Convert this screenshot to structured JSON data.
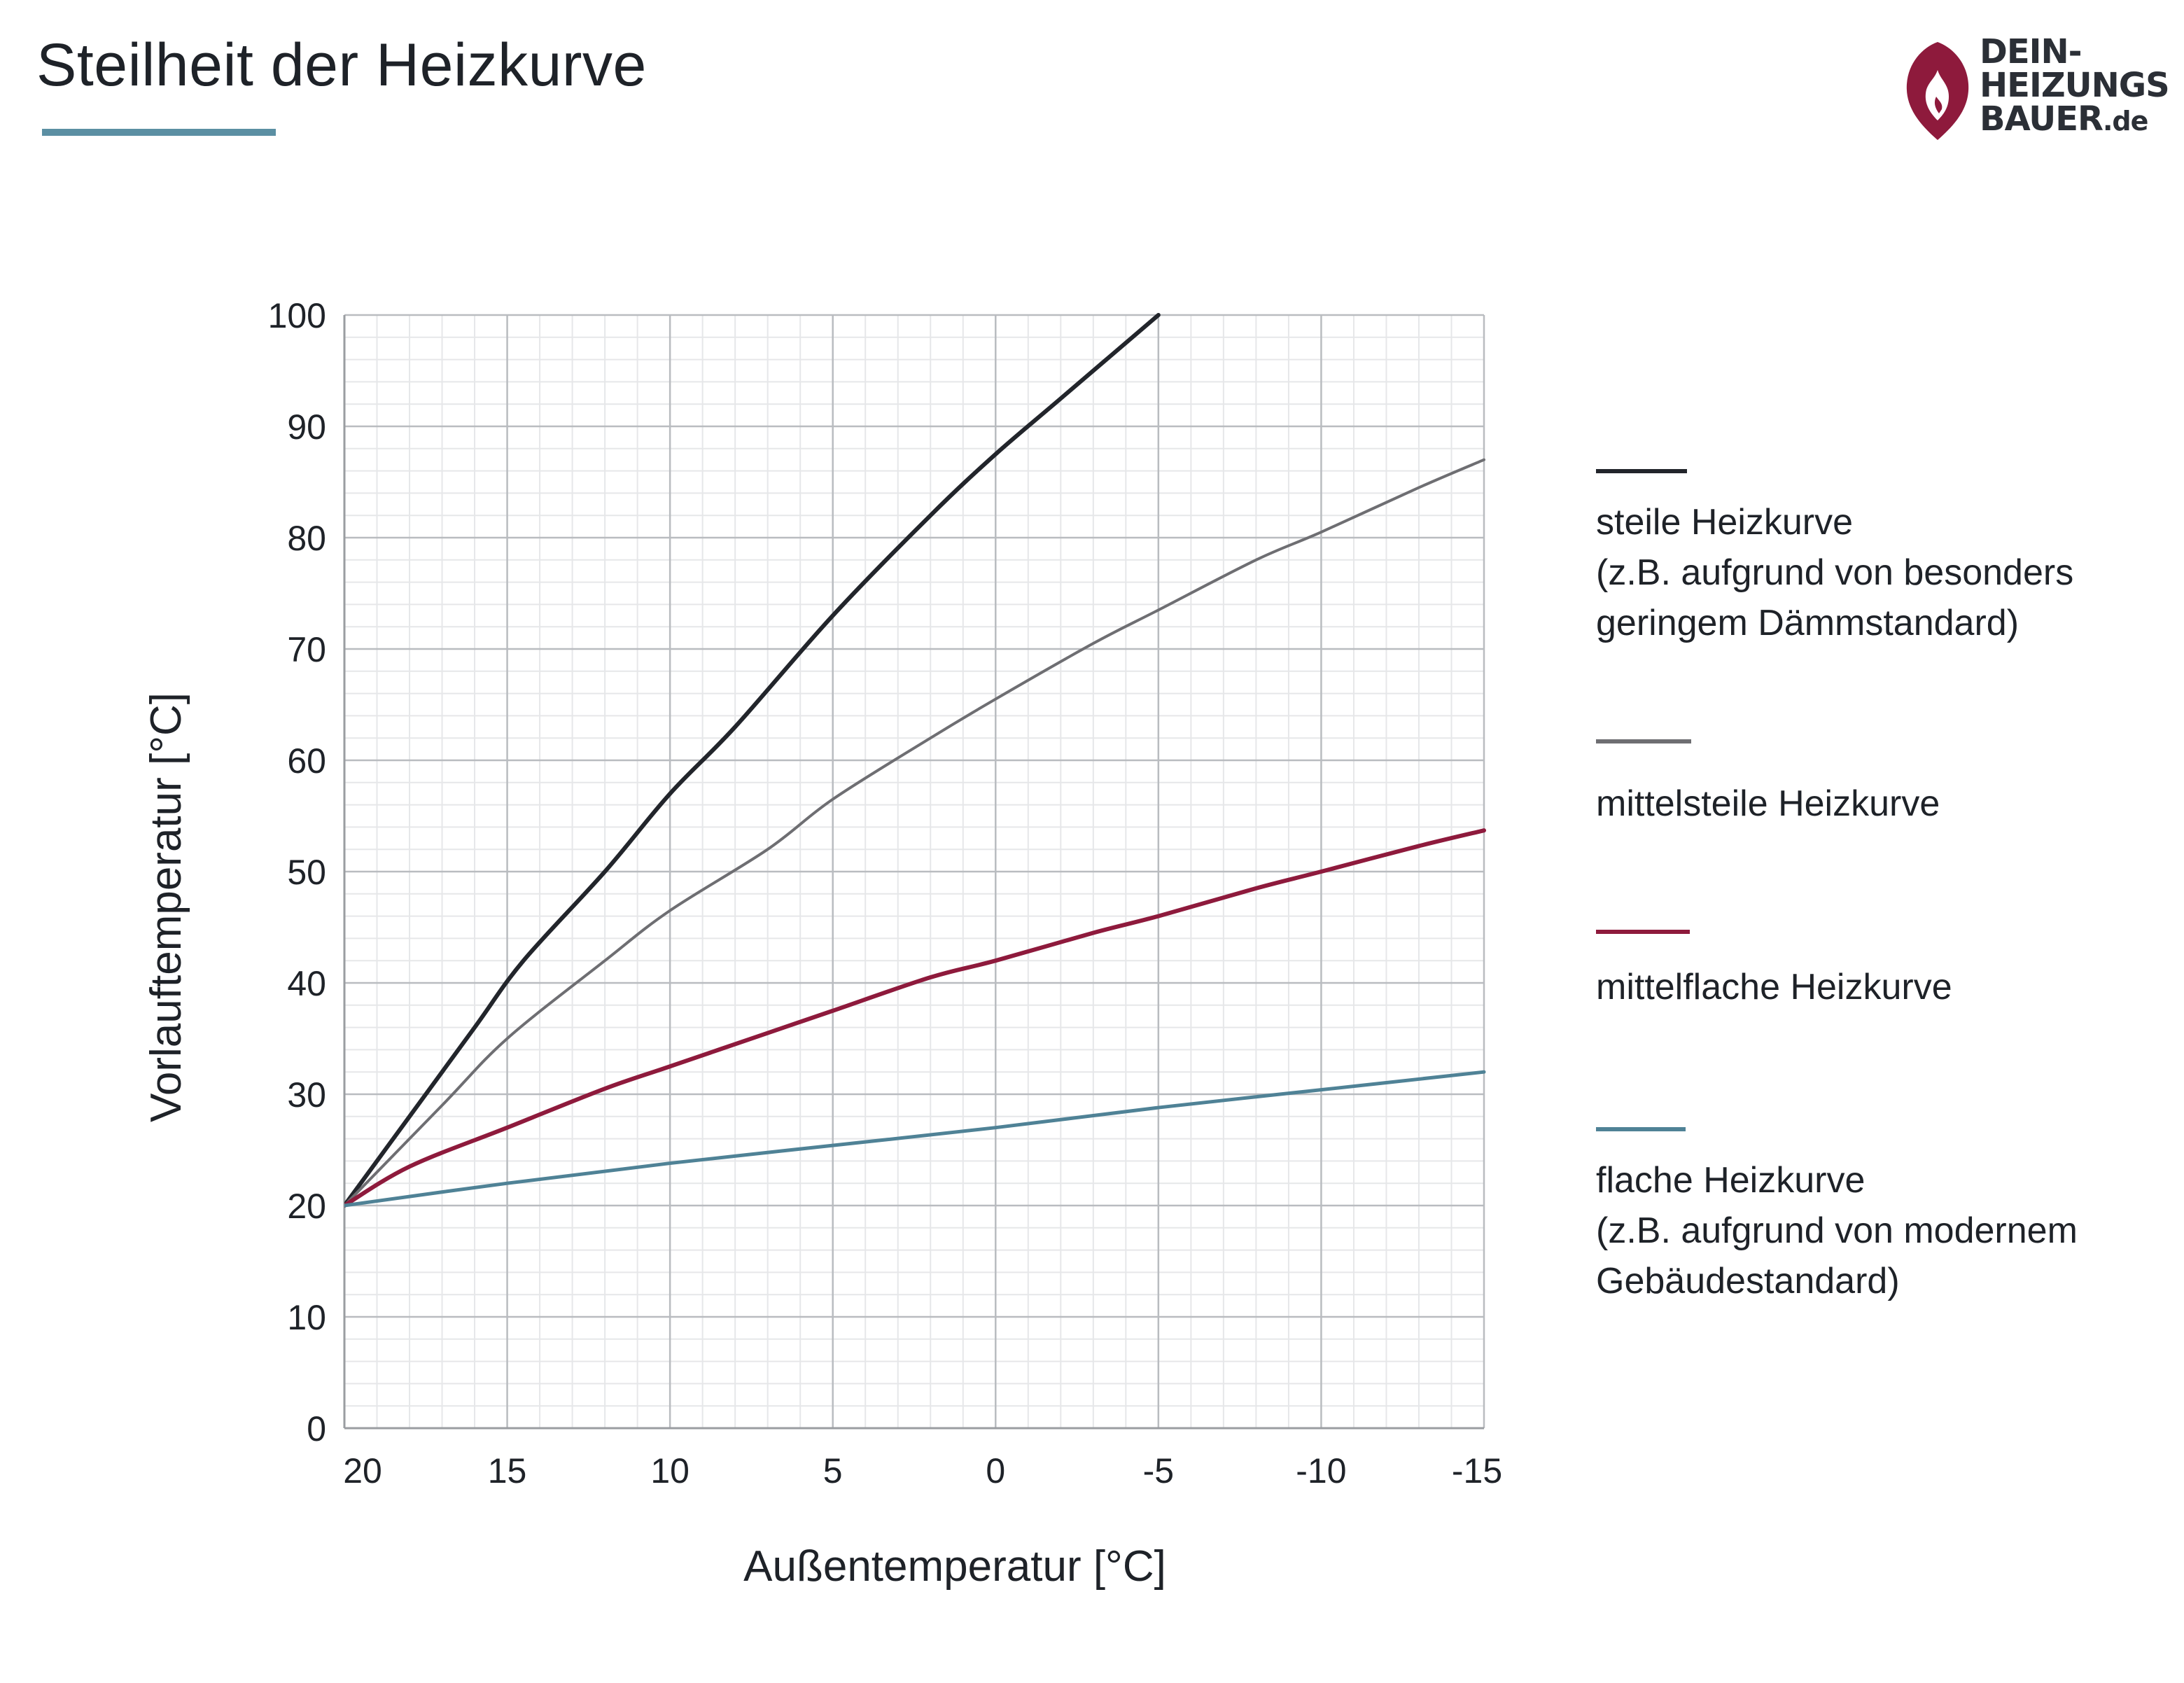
{
  "header": {
    "title": "Steilheit der Heizkurve",
    "accent_color": "#5b8fa3"
  },
  "logo": {
    "lines": [
      "DEIN-",
      "HEIZUNGS",
      "BAUER"
    ],
    "suffix": ".de",
    "flame_color": "#8e1a3c",
    "icon": "flame-icon"
  },
  "chart_data": {
    "type": "line",
    "xlabel": "Außentemperatur [°C]",
    "ylabel": "Vorlauftemperatur [°C]",
    "xlim": [
      20,
      -15
    ],
    "ylim": [
      0,
      100
    ],
    "x_ticks": [
      20,
      15,
      10,
      5,
      0,
      -5,
      -10,
      -15
    ],
    "y_ticks": [
      0,
      10,
      20,
      30,
      40,
      50,
      60,
      70,
      80,
      90,
      100
    ],
    "grid": true,
    "legend_position": "right",
    "series": [
      {
        "name": "steile Heizkurve\n(z.B. aufgrund von besonders\ngeringem Dämmstandard)",
        "color": "#22252b",
        "x": [
          20,
          18,
          16,
          14.5,
          12,
          10,
          8,
          5,
          2,
          0,
          -2,
          -5
        ],
        "y": [
          20,
          28,
          36,
          42,
          50,
          57,
          63,
          73,
          82,
          87.5,
          92.5,
          100
        ]
      },
      {
        "name": "mittelsteile Heizkurve",
        "color": "#6e6e72",
        "x": [
          20,
          17,
          15,
          12,
          10,
          7,
          5,
          2,
          0,
          -3,
          -5,
          -8,
          -10,
          -13,
          -15
        ],
        "y": [
          20,
          29,
          35,
          42,
          46.5,
          52,
          56.5,
          62,
          65.5,
          70.5,
          73.5,
          78,
          80.5,
          84.5,
          87
        ]
      },
      {
        "name": "mittelflache Heizkurve",
        "color": "#8e1a3c",
        "x": [
          20,
          18,
          15,
          12,
          10,
          7,
          5,
          2,
          0,
          -3,
          -5,
          -8,
          -10,
          -13,
          -15
        ],
        "y": [
          20,
          23.5,
          27,
          30.5,
          32.5,
          35.5,
          37.5,
          40.5,
          42,
          44.5,
          46,
          48.5,
          50,
          52.3,
          53.7
        ]
      },
      {
        "name": "flache Heizkurve\n(z.B. aufgrund von modernem\nGebäudestandard)",
        "color": "#4f8296",
        "x": [
          20,
          15,
          10,
          5,
          0,
          -5,
          -10,
          -15
        ],
        "y": [
          20,
          22,
          23.8,
          25.4,
          27,
          28.8,
          30.4,
          32
        ]
      }
    ]
  }
}
